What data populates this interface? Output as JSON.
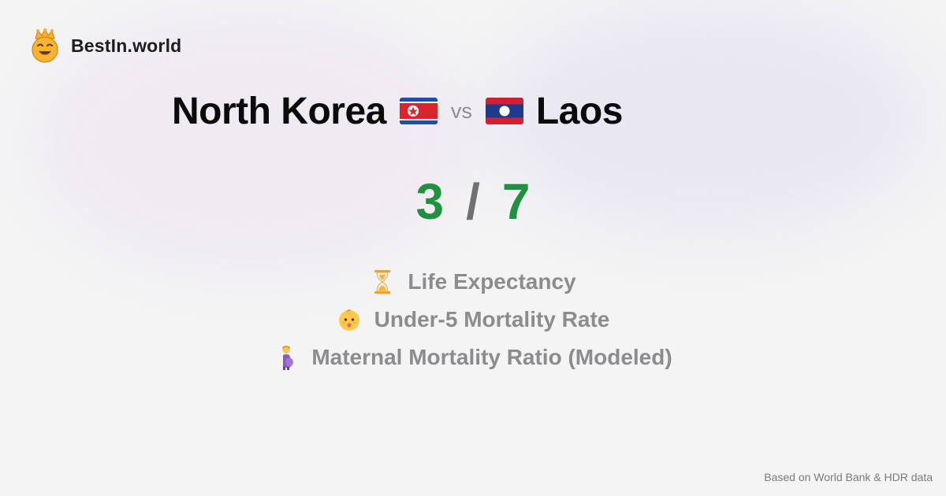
{
  "brand": {
    "name": "BestIn.world",
    "logo_icon": "crowned-smiley-icon"
  },
  "comparison": {
    "country_a": {
      "name": "North Korea",
      "flag": "north-korea-flag-icon"
    },
    "vs_label": "vs",
    "country_b": {
      "name": "Laos",
      "flag": "laos-flag-icon"
    }
  },
  "score": {
    "a": "3",
    "separator": "/",
    "b": "7"
  },
  "metrics": [
    {
      "label": "Life Expectancy",
      "icon": "hourglass-icon"
    },
    {
      "label": "Under-5 Mortality Rate",
      "icon": "baby-face-icon"
    },
    {
      "label": "Maternal Mortality Ratio (Modeled)",
      "icon": "pregnant-woman-icon"
    }
  ],
  "footer": {
    "source": "Based on World Bank & HDR data"
  },
  "colors": {
    "score_green": "#1f9140",
    "muted_text": "#8c8c90",
    "background": "#f4f4f5"
  }
}
